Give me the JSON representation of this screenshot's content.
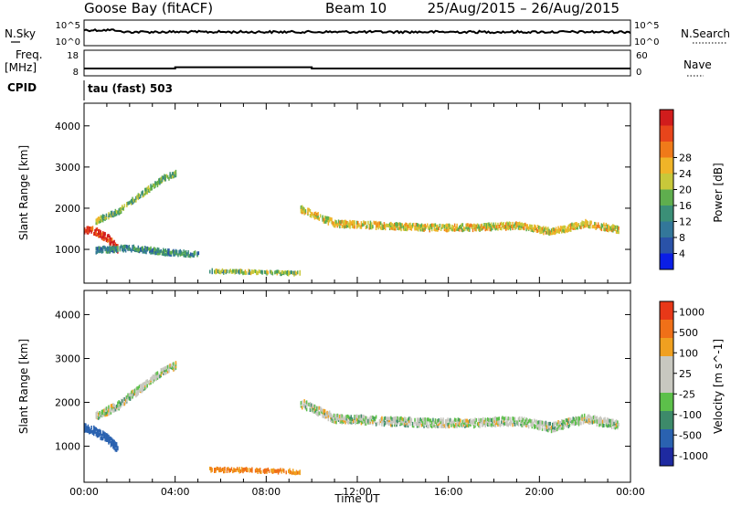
{
  "header": {
    "station": "Goose Bay (fitACF)",
    "beam": "Beam 10",
    "dates": "25/Aug/2015 – 26/Aug/2015"
  },
  "chart_data": [
    {
      "type": "line",
      "panel": "noise",
      "left_label": "N.Sky",
      "right_label": "N.Search",
      "ticks_left": [
        "10^5",
        "10^0"
      ],
      "ticks_right": [
        "10^5",
        "10^0"
      ],
      "series": [
        {
          "name": "N.Sky",
          "style": "solid",
          "level": 0.85
        },
        {
          "name": "N.Search",
          "style": "dotted",
          "level": 0.75
        }
      ]
    },
    {
      "type": "line",
      "panel": "frequency",
      "left_label_1": "Freq.",
      "left_label_2": "[MHz]",
      "right_label": "Nave",
      "ticks_left": [
        "18",
        "8"
      ],
      "ticks_right": [
        "60",
        "0"
      ],
      "ylim": [
        8,
        18
      ],
      "x": [
        0,
        4,
        4,
        10,
        10,
        24
      ],
      "values": [
        10.5,
        10.5,
        11,
        11,
        10.5,
        10.5
      ]
    },
    {
      "panel": "cpid",
      "label": "CPID",
      "text": "tau (fast) 503"
    },
    {
      "type": "heatmap",
      "panel": "power",
      "ylabel": "Slant Range [km]",
      "xlabel": "",
      "xlim": [
        0,
        24
      ],
      "ylim": [
        180,
        4550
      ],
      "yticks": [
        "1000",
        "2000",
        "3000",
        "4000"
      ],
      "colorbar": {
        "label": "Power [dB]",
        "ticks": [
          "4",
          "8",
          "12",
          "16",
          "20",
          "24",
          "28"
        ],
        "colors": [
          "#0a1ee6",
          "#2a52a8",
          "#33779a",
          "#3b8f77",
          "#5fae4e",
          "#c8c83a",
          "#f0b428",
          "#f07a19",
          "#e8451b",
          "#d11c1c"
        ]
      },
      "bands": [
        {
          "x": [
            0,
            0.5,
            1,
            1.5
          ],
          "range": [
            1500,
            1450,
            1300,
            1000
          ],
          "width": 180,
          "value": 26
        },
        {
          "x": [
            0.5,
            1.5,
            2.5,
            3.5,
            4
          ],
          "range": [
            1700,
            1950,
            2350,
            2750,
            2850
          ],
          "width": 120,
          "value": 12
        },
        {
          "x": [
            9.5,
            11,
            13,
            15,
            17,
            19,
            20.5,
            22,
            23.5
          ],
          "range": [
            2000,
            1650,
            1600,
            1550,
            1550,
            1600,
            1450,
            1650,
            1500
          ],
          "width": 150,
          "value": 16
        },
        {
          "x": [
            0.5,
            2,
            3.5,
            5
          ],
          "range": [
            1000,
            1050,
            950,
            900
          ],
          "width": 120,
          "value": 8
        },
        {
          "x": [
            5.5,
            7,
            8.5,
            9.5
          ],
          "range": [
            480,
            470,
            450,
            430
          ],
          "width": 60,
          "value": 12
        }
      ]
    },
    {
      "type": "heatmap",
      "panel": "velocity",
      "ylabel": "Slant Range [km]",
      "xlabel": "Time UT",
      "xlim": [
        0,
        24
      ],
      "ylim": [
        180,
        4550
      ],
      "xticks": [
        "00:00",
        "04:00",
        "08:00",
        "12:00",
        "16:00",
        "20:00",
        "00:00"
      ],
      "yticks": [
        "1000",
        "2000",
        "3000",
        "4000"
      ],
      "colorbar": {
        "label": "Velocity [m s^-1]",
        "ticks": [
          "1000",
          "500",
          "100",
          "25",
          "-25",
          "-100",
          "-500",
          "-1000"
        ],
        "colors": [
          "#1e2aa0",
          "#2a62b0",
          "#3d8a6a",
          "#5cc04a",
          "#c8c8c0",
          "#c8c8c0",
          "#f0a020",
          "#f07018",
          "#e83818"
        ]
      },
      "bands": [
        {
          "x": [
            0,
            0.5,
            1,
            1.5
          ],
          "range": [
            1450,
            1350,
            1200,
            950
          ],
          "width": 180,
          "value": 150
        },
        {
          "x": [
            0.5,
            1.5,
            2.5,
            3.5,
            4
          ],
          "range": [
            1700,
            1950,
            2350,
            2750,
            2850
          ],
          "width": 160,
          "value": 0
        },
        {
          "x": [
            9.5,
            11,
            13,
            15,
            17,
            19,
            20.5,
            22,
            23.5
          ],
          "range": [
            2000,
            1650,
            1600,
            1550,
            1550,
            1600,
            1450,
            1650,
            1500
          ],
          "width": 180,
          "value": 0
        },
        {
          "x": [
            5.5,
            7,
            8.5,
            9.5
          ],
          "range": [
            480,
            470,
            450,
            430
          ],
          "width": 70,
          "value": -100
        }
      ]
    }
  ]
}
